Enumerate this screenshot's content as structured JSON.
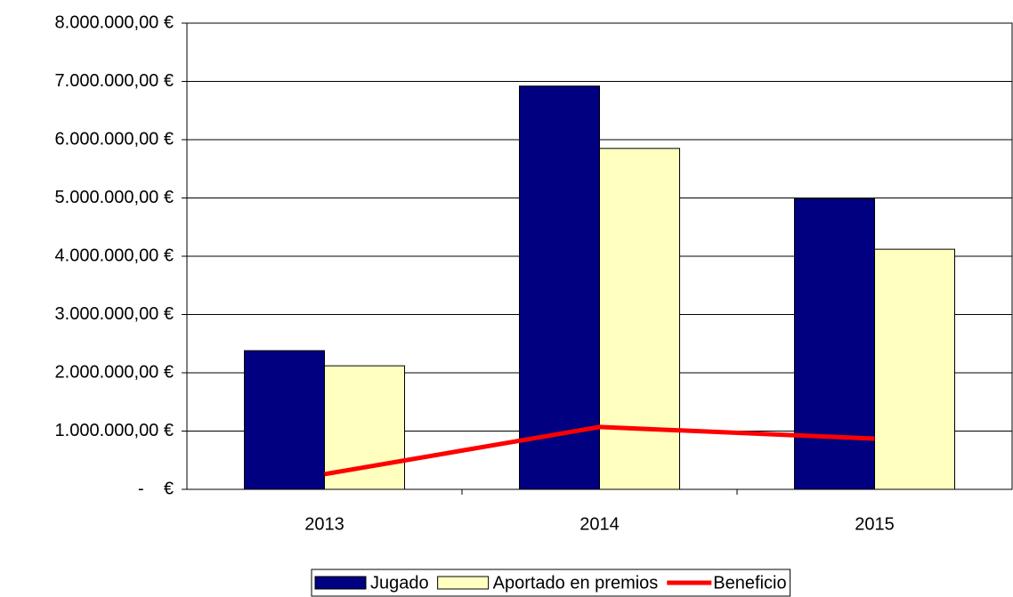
{
  "chart_data": {
    "type": "bar",
    "categories": [
      "2013",
      "2014",
      "2015"
    ],
    "series": [
      {
        "name": "Jugado",
        "type": "bar",
        "color": "#000080",
        "values": [
          2380000,
          6920000,
          4990000
        ]
      },
      {
        "name": "Aportado en premios",
        "type": "bar",
        "color": "#ffffc0",
        "values": [
          2120000,
          5850000,
          4120000
        ]
      },
      {
        "name": "Beneficio",
        "type": "line",
        "color": "#ff0000",
        "values": [
          260000,
          1070000,
          870000
        ]
      }
    ],
    "ylim": [
      0,
      8000000
    ],
    "yticks": [
      {
        "value": 0,
        "label": "-    €"
      },
      {
        "value": 1000000,
        "label": "1.000.000,00 €"
      },
      {
        "value": 2000000,
        "label": "2.000.000,00 €"
      },
      {
        "value": 3000000,
        "label": "3.000.000,00 €"
      },
      {
        "value": 4000000,
        "label": "4.000.000,00 €"
      },
      {
        "value": 5000000,
        "label": "5.000.000,00 €"
      },
      {
        "value": 6000000,
        "label": "6.000.000,00 €"
      },
      {
        "value": 7000000,
        "label": "7.000.000,00 €"
      },
      {
        "value": 8000000,
        "label": "8.000.000,00 €"
      }
    ],
    "grid": true,
    "legend": "bottom"
  }
}
